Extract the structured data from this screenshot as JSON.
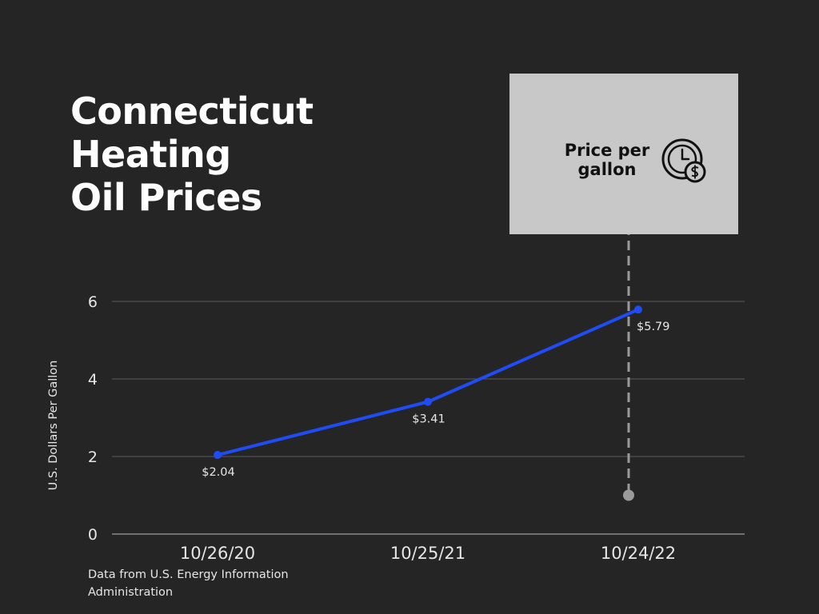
{
  "title_lines": [
    "Connecticut",
    "Heating",
    "Oil Prices"
  ],
  "legend": {
    "lines": [
      "Price per",
      "gallon"
    ],
    "icon": "clock-dollar-icon"
  },
  "source_lines": [
    "Data from U.S. Energy Information",
    "Administration"
  ],
  "colors": {
    "background": "#252525",
    "line": "#1f4cf5",
    "grid": "#5a5a5a",
    "legend_card": "#c8c8c8",
    "text": "#e6e6e6",
    "marker": "#9a9a9a"
  },
  "chart_data": {
    "type": "line",
    "categories": [
      "10/26/20",
      "10/25/21",
      "10/24/22"
    ],
    "series": [
      {
        "values": [
          2.04,
          3.41,
          5.79
        ]
      }
    ],
    "data_labels": [
      "$2.04",
      "$3.41",
      "$5.79"
    ],
    "ylabel": "U.S. Dollars Per Gallon",
    "xlabel": "",
    "ylim": [
      0,
      6
    ],
    "yticks": [
      0,
      2,
      4,
      6
    ],
    "grid": true,
    "legend_placement": "top-right",
    "annotation": {
      "category": "10/24/22",
      "marker_value": 1.0
    }
  }
}
